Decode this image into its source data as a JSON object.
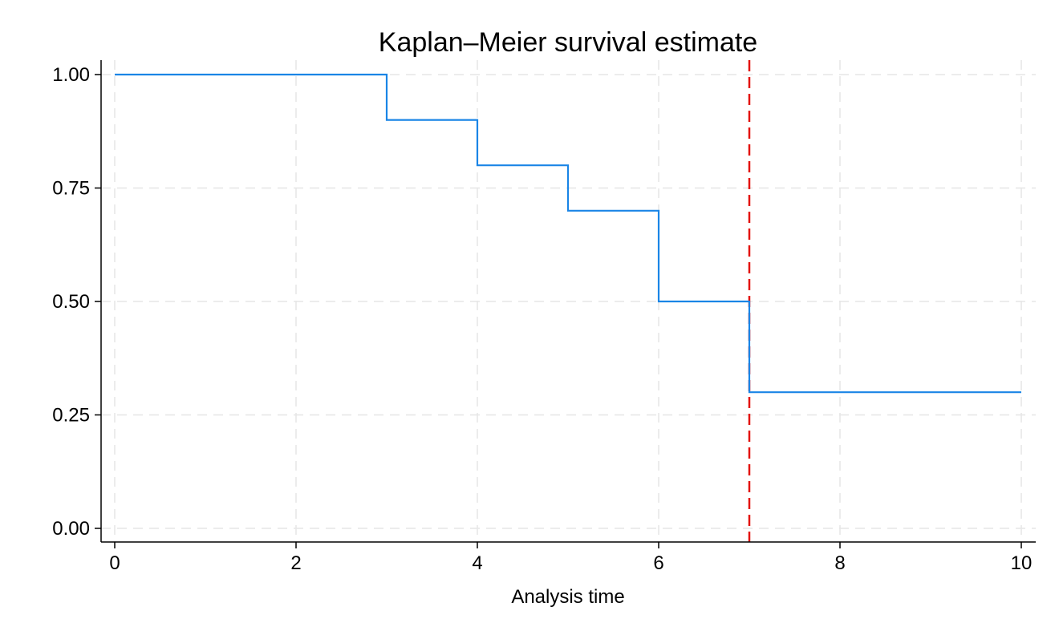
{
  "chart_data": {
    "type": "line",
    "title": "Kaplan–Meier survival estimate",
    "xlabel": "Analysis time",
    "ylabel": "",
    "xlim": [
      0,
      10
    ],
    "ylim": [
      0,
      1
    ],
    "x_ticks": [
      0,
      2,
      4,
      6,
      8,
      10
    ],
    "x_tick_labels": [
      "0",
      "2",
      "4",
      "6",
      "8",
      "10"
    ],
    "y_ticks": [
      0,
      0.25,
      0.5,
      0.75,
      1
    ],
    "y_tick_labels": [
      "0.00",
      "0.25",
      "0.50",
      "0.75",
      "1.00"
    ],
    "grid": true,
    "legend": "none",
    "series": [
      {
        "step": true,
        "color": "#1a85e6",
        "x": [
          0,
          3,
          4,
          5,
          6,
          7,
          10
        ],
        "y": [
          1.0,
          0.9,
          0.8,
          0.7,
          0.5,
          0.3,
          0.3
        ]
      }
    ],
    "reference_lines": [
      {
        "orientation": "vertical",
        "x": 7,
        "color": "#e3120b",
        "style": "dashed"
      }
    ]
  }
}
